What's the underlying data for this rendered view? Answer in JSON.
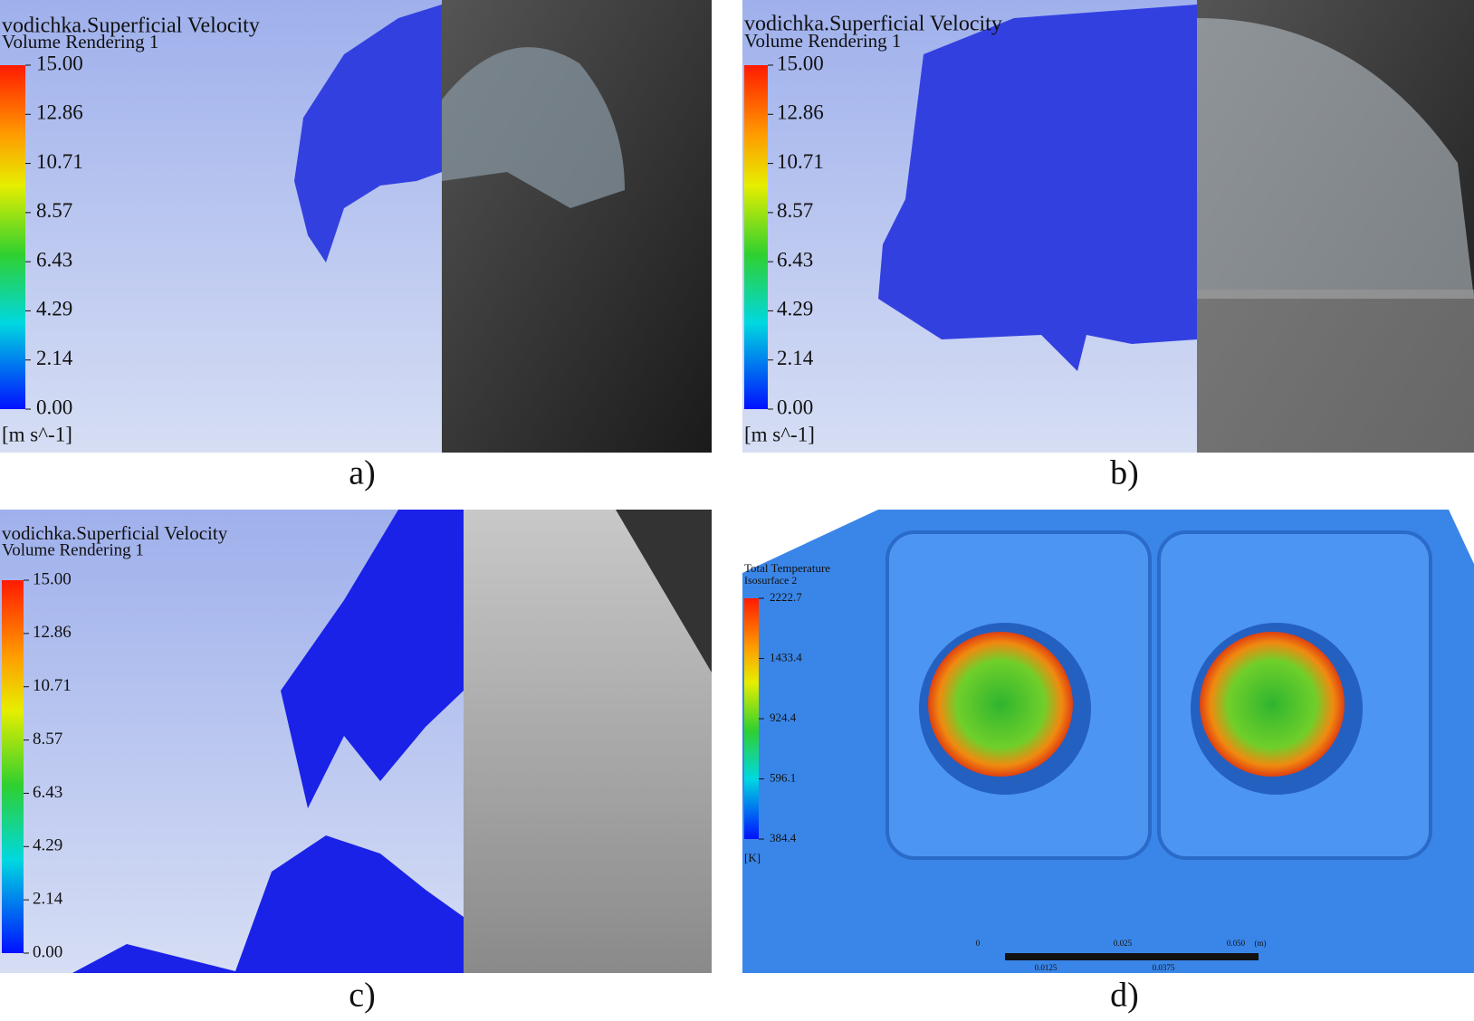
{
  "panels": [
    {
      "title": "vodichka.Superficial Velocity",
      "subtitle": "Volume Rendering 1",
      "ticks": [
        "15.00",
        "12.86",
        "10.71",
        "8.57",
        "6.43",
        "4.29",
        "2.14",
        "0.00"
      ],
      "unit": "[m s^-1]",
      "caption": "a)"
    },
    {
      "title": "vodichka.Superficial Velocity",
      "subtitle": "Volume Rendering 1",
      "ticks": [
        "15.00",
        "12.86",
        "10.71",
        "8.57",
        "6.43",
        "4.29",
        "2.14",
        "0.00"
      ],
      "unit": "[m s^-1]",
      "caption": "b)"
    },
    {
      "title": "vodichka.Superficial Velocity",
      "subtitle": "Volume Rendering 1",
      "ticks": [
        "15.00",
        "12.86",
        "10.71",
        "8.57",
        "6.43",
        "4.29",
        "2.14",
        "0.00"
      ],
      "caption": "c)"
    },
    {
      "title": "Total Temperature",
      "subtitle": "Isosurface 2",
      "ticks": [
        "2222.7",
        "1433.4",
        "924.4",
        "596.1",
        "384.4"
      ],
      "unit": "[K]",
      "caption": "d)",
      "scale_bar": {
        "top": [
          "0",
          "0.025",
          "0.050",
          "(m)"
        ],
        "bottom": [
          "0.0125",
          "0.0375"
        ]
      }
    }
  ]
}
